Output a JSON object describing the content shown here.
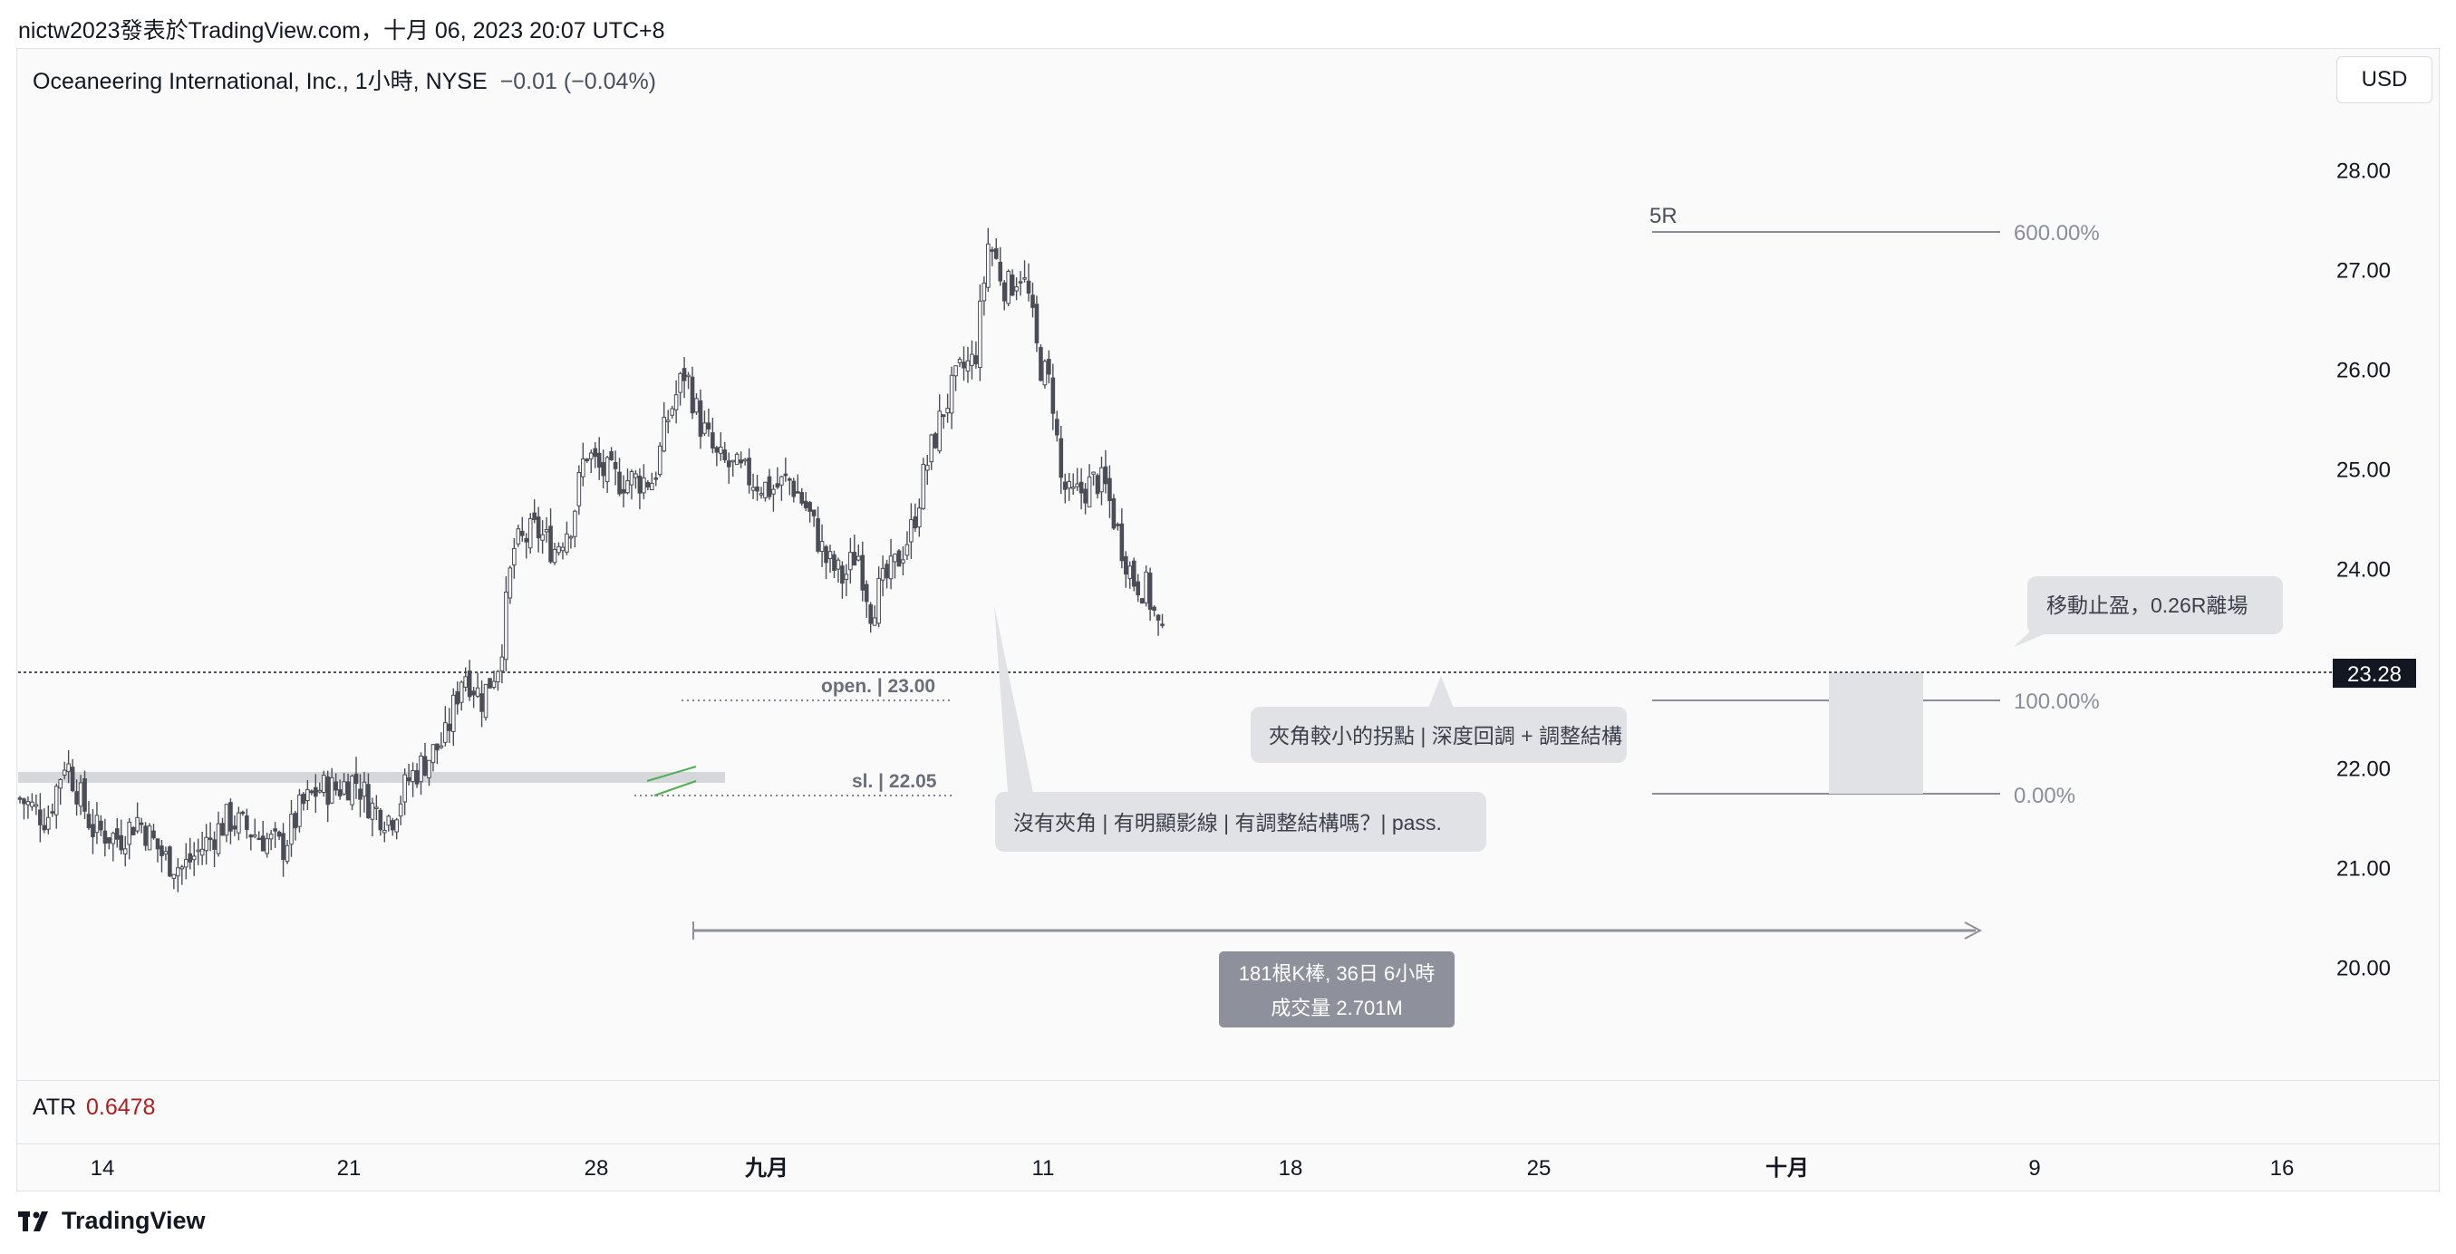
{
  "header": {
    "caption": "nictw2023發表於TradingView.com，十月 06, 2023 20:07 UTC+8"
  },
  "legend": {
    "title": "Oceaneering International, Inc., 1小時, NYSE",
    "change": "−0.01 (−0.04%)"
  },
  "currency_button": "USD",
  "indicator": {
    "name": "ATR",
    "value": "0.6478"
  },
  "footer": {
    "brand": "TradingView"
  },
  "colors": {
    "candle": "#4a4d57",
    "atr_value": "#b21d1d",
    "fib_line": "#7e8290",
    "callout_bg": "#e1e2e6",
    "range_label_bg": "#8e919b"
  },
  "chart_data": {
    "type": "candlestick",
    "symbol": "Oceaneering International, Inc.",
    "interval": "1小時",
    "exchange": "NYSE",
    "y_axis": {
      "ticks": [
        28,
        27,
        26,
        25,
        24,
        23,
        22,
        21,
        20
      ],
      "tick_labels": [
        "28.00",
        "27.00",
        "26.00",
        "25.00",
        "24.00",
        "23.00",
        "22.00",
        "21.00",
        "20.00"
      ],
      "range": [
        19.15,
        28.55
      ]
    },
    "x_axis": {
      "tick_labels": [
        "14",
        "21",
        "28",
        "九月",
        "11",
        "18",
        "25",
        "十月",
        "9",
        "16"
      ],
      "bold_labels": [
        "九月",
        "十月"
      ]
    },
    "last_price": "23.28",
    "close_path": [
      [
        0,
        21.7
      ],
      [
        30,
        21.5
      ],
      [
        50,
        22.1
      ],
      [
        80,
        21.4
      ],
      [
        110,
        21.3
      ],
      [
        130,
        21.5
      ],
      [
        160,
        21.1
      ],
      [
        180,
        21.0
      ],
      [
        210,
        21.3
      ],
      [
        230,
        21.5
      ],
      [
        250,
        21.4
      ],
      [
        270,
        21.3
      ],
      [
        290,
        21.2
      ],
      [
        310,
        21.6
      ],
      [
        330,
        21.8
      ],
      [
        350,
        21.8
      ],
      [
        370,
        21.9
      ],
      [
        390,
        21.6
      ],
      [
        410,
        21.5
      ],
      [
        430,
        21.9
      ],
      [
        450,
        22.1
      ],
      [
        470,
        22.3
      ],
      [
        490,
        23.0
      ],
      [
        510,
        22.7
      ],
      [
        530,
        23.1
      ],
      [
        545,
        24.2
      ],
      [
        570,
        24.4
      ],
      [
        590,
        24.2
      ],
      [
        610,
        24.5
      ],
      [
        625,
        25.2
      ],
      [
        640,
        25.0
      ],
      [
        660,
        24.9
      ],
      [
        680,
        24.9
      ],
      [
        700,
        24.9
      ],
      [
        715,
        25.5
      ],
      [
        735,
        26.0
      ],
      [
        750,
        25.5
      ],
      [
        770,
        25.1
      ],
      [
        790,
        25.0
      ],
      [
        810,
        24.9
      ],
      [
        830,
        24.8
      ],
      [
        850,
        24.9
      ],
      [
        870,
        24.6
      ],
      [
        890,
        24.1
      ],
      [
        910,
        23.9
      ],
      [
        925,
        24.2
      ],
      [
        940,
        23.6
      ],
      [
        950,
        23.8
      ],
      [
        965,
        24.0
      ],
      [
        985,
        24.4
      ],
      [
        1000,
        25.0
      ],
      [
        1020,
        25.6
      ],
      [
        1040,
        26.0
      ],
      [
        1055,
        26.1
      ],
      [
        1070,
        27.3
      ],
      [
        1090,
        26.8
      ],
      [
        1105,
        27.0
      ],
      [
        1115,
        26.7
      ],
      [
        1125,
        26.1
      ],
      [
        1140,
        25.8
      ],
      [
        1150,
        24.9
      ],
      [
        1160,
        24.7
      ],
      [
        1175,
        24.8
      ],
      [
        1190,
        24.9
      ],
      [
        1200,
        24.8
      ],
      [
        1215,
        24.3
      ],
      [
        1230,
        23.9
      ],
      [
        1245,
        23.8
      ],
      [
        1262,
        23.28
      ]
    ]
  },
  "annotations": {
    "open_label": "open. | 23.00",
    "sl_label": "sl. | 22.05",
    "fib_label_5r": "5R",
    "fib_600": "600.00%",
    "fib_100": "100.00%",
    "fib_0": "0.00%",
    "callout_pass": "沒有夾角 | 有明顯影線 | 有調整結構嗎？| pass.",
    "callout_pullback": "夾角較小的拐點 | 深度回調 + 調整結構",
    "callout_exit": "移動止盈，0.26R離場",
    "range_line1": "181根K棒, 36日 6小時",
    "range_line2": "成交量 2.701M"
  }
}
